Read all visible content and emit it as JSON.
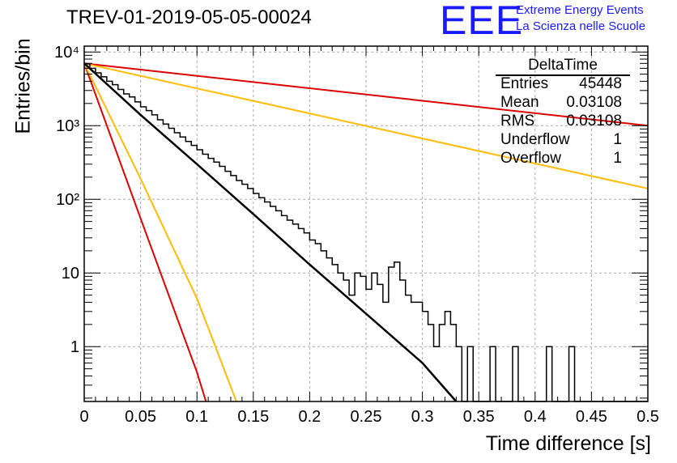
{
  "header": {
    "title": "TREV-01-2019-05-05-00024",
    "logo_text": "EEE",
    "logo_line1": "Extreme Energy Events",
    "logo_line2": "La Scienza nelle Scuole"
  },
  "stats_box": {
    "title": "DeltaTime",
    "rows": [
      {
        "key": "Entries",
        "value": "45448"
      },
      {
        "key": "Mean",
        "value": "0.03108"
      },
      {
        "key": "RMS",
        "value": "0.03108"
      },
      {
        "key": "Underflow",
        "value": "1"
      },
      {
        "key": "Overflow",
        "value": "1"
      }
    ]
  },
  "colors": {
    "histogram": "#000000",
    "fit": "#000000",
    "red": "#dd0000",
    "orange": "#ffbb00",
    "grid": "#aaaaaa",
    "logo": "#1a1aff"
  },
  "chart_data": {
    "type": "line",
    "title": "TREV-01-2019-05-05-00024",
    "xlabel": "Time difference [s]",
    "ylabel": "Entries/bin",
    "xlim": [
      0,
      0.5
    ],
    "ylim": [
      0.18,
      12000
    ],
    "y_scale": "log",
    "grid": true,
    "x_ticks": [
      "0",
      "0.05",
      "0.1",
      "0.15",
      "0.2",
      "0.25",
      "0.3",
      "0.35",
      "0.4",
      "0.45",
      "0.5"
    ],
    "y_ticks": [
      {
        "label": "1",
        "value": 1
      },
      {
        "label": "10",
        "value": 10
      },
      {
        "label": "10²",
        "value": 100
      },
      {
        "label": "10³",
        "value": 1000
      },
      {
        "label": "10⁴",
        "value": 10000
      }
    ],
    "histogram": {
      "bin_width": 0.005,
      "counts": [
        6900,
        6000,
        5200,
        4600,
        4000,
        3600,
        3100,
        2700,
        2450,
        2100,
        1800,
        1600,
        1400,
        1200,
        1050,
        920,
        800,
        700,
        610,
        540,
        470,
        410,
        360,
        320,
        280,
        240,
        210,
        180,
        160,
        140,
        120,
        105,
        92,
        80,
        70,
        60,
        52,
        46,
        40,
        35,
        28,
        25,
        20,
        16,
        13,
        10,
        8,
        5,
        10,
        9,
        6,
        10,
        7,
        4,
        12,
        14,
        8,
        5,
        4,
        4,
        3,
        2,
        1,
        2,
        3,
        2,
        1,
        0,
        1,
        0,
        0,
        0,
        1,
        0,
        0,
        0,
        1,
        0,
        0,
        0,
        0,
        0,
        1,
        0,
        0,
        0,
        1,
        0,
        0,
        0,
        0,
        0,
        0,
        0,
        0,
        0,
        0,
        0,
        0,
        0
      ]
    },
    "series": [
      {
        "name": "fit",
        "color": "#000000",
        "x": [
          0,
          0.05,
          0.1,
          0.15,
          0.2,
          0.25,
          0.3,
          0.33
        ],
        "values": [
          7000,
          1400,
          300,
          63,
          13,
          2.8,
          0.6,
          0.18
        ]
      },
      {
        "color": "#dd0000",
        "x": [
          0,
          0.5
        ],
        "values": [
          7000,
          1000
        ]
      },
      {
        "color": "#ffbb00",
        "x": [
          0,
          0.5
        ],
        "values": [
          7000,
          140
        ]
      },
      {
        "color": "#dd0000",
        "x": [
          0,
          0.05,
          0.1,
          0.108
        ],
        "values": [
          7000,
          55,
          0.45,
          0.18
        ]
      },
      {
        "color": "#ffbb00",
        "x": [
          0,
          0.05,
          0.1,
          0.135
        ],
        "values": [
          7000,
          190,
          4.5,
          0.18
        ]
      }
    ]
  }
}
